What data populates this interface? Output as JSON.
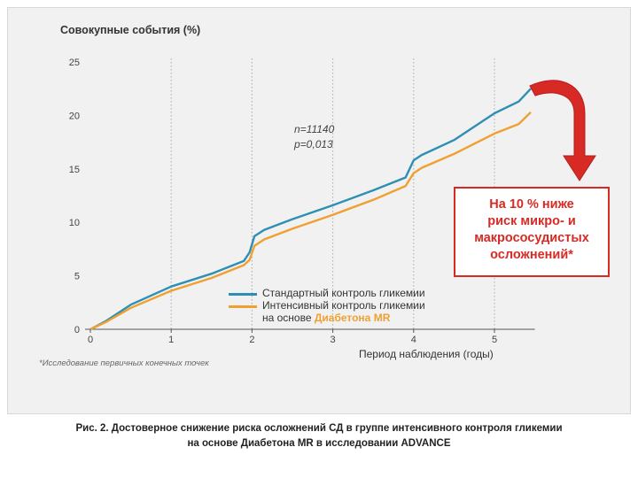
{
  "y_axis_title": "Совокупные события (%)",
  "x_axis_title": "Период наблюдения (годы)",
  "annotation_n": "n=11140",
  "annotation_p": "p=0,013",
  "legend": {
    "standard": "Стандартный контроль гликемии",
    "intensive_line1": "Интенсивный контроль гликемии",
    "intensive_line2_prefix": "на основе ",
    "intensive_line2_highlight": "Диабетона MR"
  },
  "callout": {
    "line1": "На 10 % ниже",
    "line2": "риск микро- и",
    "line3": "макрососудистых",
    "line4": "осложнений*"
  },
  "footnote": "*Исследование первичных конечных точек",
  "caption": {
    "line1": "Рис. 2. Достоверное снижение риска осложнений СД в группе интенсивного контроля гликемии",
    "line2": "на основе Диабетона MR в исследовании ADVANCE"
  },
  "colors": {
    "standard": "#2e8fb5",
    "intensive": "#f0a030",
    "callout": "#d82a25"
  },
  "chart_data": {
    "type": "line",
    "ylabel": "Совокупные события (%)",
    "xlabel": "Период наблюдения (годы)",
    "xlim": [
      0,
      5.5
    ],
    "ylim": [
      0,
      25
    ],
    "xticks": [
      0,
      1,
      2,
      3,
      4,
      5
    ],
    "yticks": [
      0,
      5,
      10,
      15,
      20,
      25
    ],
    "grid": "vertical dotted at integer years",
    "series": [
      {
        "name": "Стандартный контроль гликемии",
        "points": [
          [
            0,
            0
          ],
          [
            0.2,
            0.8
          ],
          [
            0.5,
            2.3
          ],
          [
            1.0,
            4.0
          ],
          [
            1.5,
            5.2
          ],
          [
            1.9,
            6.4
          ],
          [
            1.97,
            7.2
          ],
          [
            2.03,
            8.7
          ],
          [
            2.15,
            9.3
          ],
          [
            2.5,
            10.3
          ],
          [
            3.0,
            11.6
          ],
          [
            3.5,
            13.0
          ],
          [
            3.9,
            14.2
          ],
          [
            4.0,
            15.8
          ],
          [
            4.1,
            16.3
          ],
          [
            4.5,
            17.7
          ],
          [
            5.0,
            20.2
          ],
          [
            5.3,
            21.3
          ],
          [
            5.45,
            22.5
          ]
        ]
      },
      {
        "name": "Интенсивный контроль гликемии на основе Диабетона MR",
        "points": [
          [
            0,
            0
          ],
          [
            0.2,
            0.7
          ],
          [
            0.5,
            2.0
          ],
          [
            1.0,
            3.6
          ],
          [
            1.5,
            4.8
          ],
          [
            1.9,
            6.0
          ],
          [
            1.97,
            6.5
          ],
          [
            2.03,
            7.8
          ],
          [
            2.15,
            8.4
          ],
          [
            2.5,
            9.4
          ],
          [
            3.0,
            10.7
          ],
          [
            3.5,
            12.1
          ],
          [
            3.9,
            13.4
          ],
          [
            4.0,
            14.6
          ],
          [
            4.1,
            15.1
          ],
          [
            4.5,
            16.4
          ],
          [
            5.0,
            18.3
          ],
          [
            5.3,
            19.2
          ],
          [
            5.45,
            20.3
          ]
        ]
      }
    ]
  }
}
